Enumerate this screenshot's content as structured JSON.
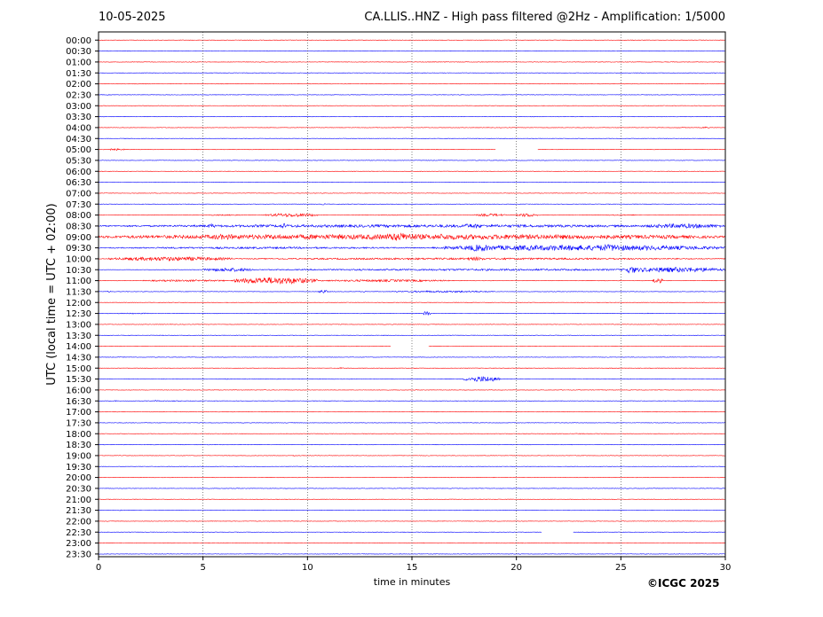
{
  "header": {
    "date": "10-05-2025",
    "station_title": "CA.LLIS..HNZ - High pass filtered @2Hz - Amplification: 1/5000"
  },
  "footer": {
    "copyright": "©ICGC 2025"
  },
  "chart_data": {
    "type": "line",
    "subtype": "helicorder",
    "xlabel": "time in minutes",
    "ylabel": "UTC (local time = UTC + 02:00)",
    "xlim": [
      0,
      30
    ],
    "xticks": [
      "0",
      "5",
      "10",
      "15",
      "20",
      "25",
      "30"
    ],
    "vertical_gridlines_at_minutes": [
      5,
      10,
      15,
      20,
      25
    ],
    "grid": "vertical dotted",
    "row_labels": [
      "00:00",
      "00:30",
      "01:00",
      "01:30",
      "02:00",
      "02:30",
      "03:00",
      "03:30",
      "04:00",
      "04:30",
      "05:00",
      "05:30",
      "06:00",
      "06:30",
      "07:00",
      "07:30",
      "08:00",
      "08:30",
      "09:00",
      "09:30",
      "10:00",
      "10:30",
      "11:00",
      "11:30",
      "12:00",
      "12:30",
      "13:00",
      "13:30",
      "14:00",
      "14:30",
      "15:00",
      "15:30",
      "16:00",
      "16:30",
      "17:00",
      "17:30",
      "18:00",
      "18:30",
      "19:00",
      "19:30",
      "20:00",
      "20:30",
      "21:00",
      "21:30",
      "22:00",
      "22:30",
      "23:00",
      "23:30"
    ],
    "trace_colors": [
      "#ff0000",
      "#0000ff"
    ],
    "gaps": [
      {
        "row": "05:00",
        "from_min": 19.0,
        "to_min": 21.0
      },
      {
        "row": "14:00",
        "from_min": 14.0,
        "to_min": 15.8
      },
      {
        "row": "22:30",
        "from_min": 21.2,
        "to_min": 22.7
      }
    ],
    "activity": [
      {
        "row": "04:00",
        "segments": [
          [
            27.5,
            28.2,
            0.5
          ],
          [
            28.9,
            29.2,
            1.0
          ]
        ]
      },
      {
        "row": "05:00",
        "segments": [
          [
            0.2,
            1.3,
            1.0
          ],
          [
            4.5,
            5.2,
            0.4
          ]
        ]
      },
      {
        "row": "07:30",
        "segments": [
          [
            10.6,
            10.9,
            0.8
          ]
        ]
      },
      {
        "row": "08:00",
        "segments": [
          [
            8.0,
            10.5,
            2.0
          ],
          [
            5.0,
            7.0,
            0.6
          ],
          [
            18.0,
            19.5,
            1.5
          ],
          [
            20.0,
            21.0,
            2.0
          ],
          [
            24.0,
            26.0,
            0.6
          ],
          [
            12.0,
            15.0,
            0.4
          ]
        ]
      },
      {
        "row": "08:30",
        "segments": [
          [
            0,
            30,
            1.5
          ],
          [
            8.7,
            9.1,
            3.0
          ],
          [
            17.2,
            18.5,
            2.5
          ],
          [
            26.0,
            30.0,
            2.5
          ],
          [
            5.2,
            5.6,
            2.5
          ]
        ]
      },
      {
        "row": "09:00",
        "segments": [
          [
            0,
            30,
            2.8
          ],
          [
            13.5,
            15.5,
            4.5
          ],
          [
            5.0,
            7.0,
            3.0
          ],
          [
            16.0,
            17.0,
            3.5
          ],
          [
            22.0,
            30.0,
            2.0
          ]
        ]
      },
      {
        "row": "09:30",
        "segments": [
          [
            0,
            16.0,
            1.0
          ],
          [
            16.0,
            30.0,
            3.0
          ],
          [
            17.5,
            19.0,
            3.8
          ],
          [
            23.5,
            25.5,
            3.8
          ]
        ]
      },
      {
        "row": "10:00",
        "segments": [
          [
            0.5,
            6.5,
            2.2
          ],
          [
            6.5,
            30.0,
            1.0
          ],
          [
            17.5,
            18.5,
            2.0
          ]
        ]
      },
      {
        "row": "10:30",
        "segments": [
          [
            5.0,
            7.5,
            2.0
          ],
          [
            7.5,
            30.0,
            1.0
          ],
          [
            25.0,
            30.0,
            2.8
          ],
          [
            25.2,
            25.8,
            4.0
          ]
        ]
      },
      {
        "row": "11:00",
        "segments": [
          [
            2.0,
            6.5,
            1.0
          ],
          [
            6.5,
            10.5,
            3.8
          ],
          [
            10.5,
            17.0,
            1.2
          ],
          [
            26.5,
            27.0,
            3.0
          ]
        ]
      },
      {
        "row": "11:30",
        "segments": [
          [
            0.4,
            0.6,
            0.8
          ],
          [
            10.5,
            11.0,
            1.8
          ],
          [
            14.0,
            19.0,
            1.0
          ],
          [
            12.5,
            13.0,
            0.6
          ]
        ]
      },
      {
        "row": "12:30",
        "segments": [
          [
            0.5,
            3.0,
            0.5
          ],
          [
            15.5,
            15.9,
            2.5
          ],
          [
            21.5,
            22.0,
            0.5
          ],
          [
            26.0,
            26.5,
            0.5
          ]
        ]
      },
      {
        "row": "15:00",
        "segments": [
          [
            11.5,
            11.8,
            0.8
          ],
          [
            5.0,
            5.3,
            0.3
          ]
        ]
      },
      {
        "row": "15:30",
        "segments": [
          [
            17.5,
            19.2,
            3.2
          ],
          [
            6.0,
            6.3,
            0.5
          ]
        ]
      },
      {
        "row": "16:30",
        "segments": [
          [
            0.7,
            0.9,
            0.6
          ],
          [
            2.3,
            3.0,
            0.6
          ],
          [
            3.5,
            4.0,
            0.6
          ],
          [
            13.3,
            13.5,
            0.5
          ]
        ]
      },
      {
        "row": "18:00",
        "segments": [
          [
            22.8,
            23.2,
            0.5
          ]
        ]
      },
      {
        "row": "19:00",
        "segments": [
          [
            9.3,
            9.5,
            0.6
          ]
        ]
      },
      {
        "row": "21:30",
        "segments": [
          [
            0.9,
            1.2,
            0.5
          ]
        ]
      }
    ]
  }
}
